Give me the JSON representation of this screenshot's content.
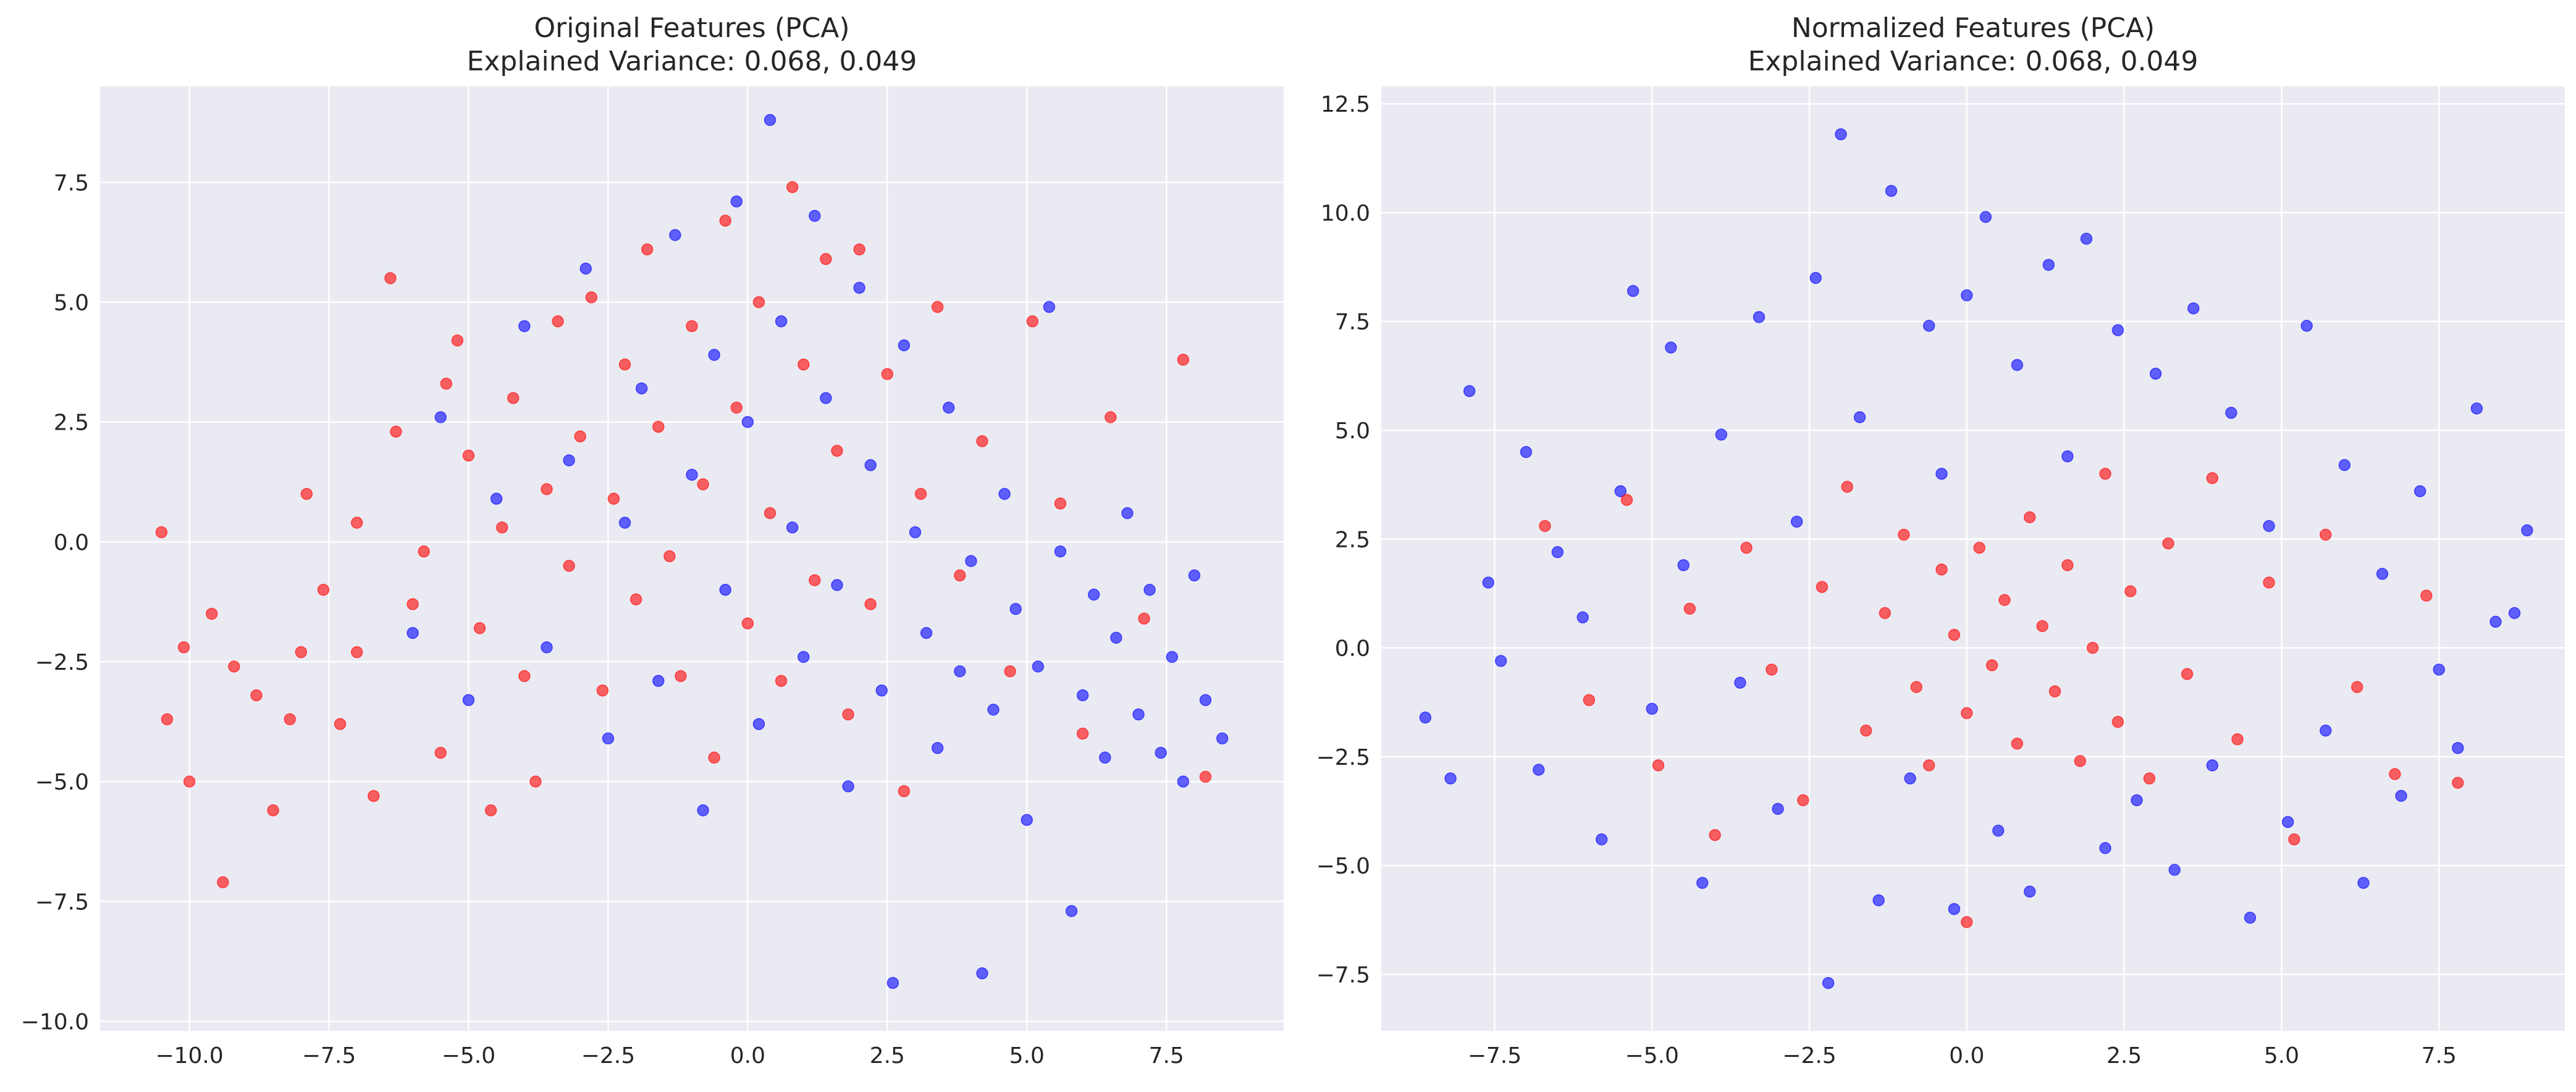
{
  "chart_data": [
    {
      "type": "scatter",
      "title": "Original Features (PCA)",
      "subtitle": "Explained Variance: 0.068, 0.049",
      "xlabel": "",
      "ylabel": "",
      "xlim": [
        -11.6,
        9.6
      ],
      "ylim": [
        -10.2,
        9.5
      ],
      "xticks": [
        -10.0,
        -7.5,
        -5.0,
        -2.5,
        0.0,
        2.5,
        5.0,
        7.5
      ],
      "xtick_labels": [
        "−10.0",
        "−7.5",
        "−5.0",
        "−2.5",
        "0.0",
        "2.5",
        "5.0",
        "7.5"
      ],
      "yticks": [
        -10.0,
        -7.5,
        -5.0,
        -2.5,
        0.0,
        2.5,
        5.0,
        7.5
      ],
      "ytick_labels": [
        "−10.0",
        "−7.5",
        "−5.0",
        "−2.5",
        "0.0",
        "2.5",
        "5.0",
        "7.5"
      ],
      "grid": true,
      "series": [
        {
          "color": "#ff0000",
          "points": [
            [
              -10.5,
              0.2
            ],
            [
              -10.4,
              -3.7
            ],
            [
              -10.1,
              -2.2
            ],
            [
              -10.0,
              -5.0
            ],
            [
              -9.6,
              -1.5
            ],
            [
              -9.4,
              -7.1
            ],
            [
              -9.2,
              -2.6
            ],
            [
              -8.8,
              -3.2
            ],
            [
              -8.5,
              -5.6
            ],
            [
              -8.2,
              -3.7
            ],
            [
              -8.0,
              -2.3
            ],
            [
              -7.9,
              1.0
            ],
            [
              -7.6,
              -1.0
            ],
            [
              -7.3,
              -3.8
            ],
            [
              -7.0,
              0.4
            ],
            [
              -7.0,
              -2.3
            ],
            [
              -6.7,
              -5.3
            ],
            [
              -6.4,
              5.5
            ],
            [
              -6.3,
              2.3
            ],
            [
              -6.0,
              -1.3
            ],
            [
              -5.8,
              -0.2
            ],
            [
              -5.5,
              -4.4
            ],
            [
              -5.4,
              3.3
            ],
            [
              -5.2,
              4.2
            ],
            [
              -5.0,
              1.8
            ],
            [
              -4.8,
              -1.8
            ],
            [
              -4.6,
              -5.6
            ],
            [
              -4.4,
              0.3
            ],
            [
              -4.2,
              3.0
            ],
            [
              -4.0,
              -2.8
            ],
            [
              -3.8,
              -5.0
            ],
            [
              -3.6,
              1.1
            ],
            [
              -3.4,
              4.6
            ],
            [
              -3.2,
              -0.5
            ],
            [
              -3.0,
              2.2
            ],
            [
              -2.8,
              5.1
            ],
            [
              -2.6,
              -3.1
            ],
            [
              -2.4,
              0.9
            ],
            [
              -2.2,
              3.7
            ],
            [
              -2.0,
              -1.2
            ],
            [
              -1.8,
              6.1
            ],
            [
              -1.6,
              2.4
            ],
            [
              -1.4,
              -0.3
            ],
            [
              -1.2,
              -2.8
            ],
            [
              -1.0,
              4.5
            ],
            [
              -0.8,
              1.2
            ],
            [
              -0.6,
              -4.5
            ],
            [
              -0.4,
              6.7
            ],
            [
              -0.2,
              2.8
            ],
            [
              0.0,
              -1.7
            ],
            [
              0.2,
              5.0
            ],
            [
              0.4,
              0.6
            ],
            [
              0.6,
              -2.9
            ],
            [
              0.8,
              7.4
            ],
            [
              1.0,
              3.7
            ],
            [
              1.2,
              -0.8
            ],
            [
              1.4,
              5.9
            ],
            [
              1.6,
              1.9
            ],
            [
              1.8,
              -3.6
            ],
            [
              2.0,
              6.1
            ],
            [
              2.2,
              -1.3
            ],
            [
              2.5,
              3.5
            ],
            [
              2.8,
              -5.2
            ],
            [
              3.1,
              1.0
            ],
            [
              3.4,
              4.9
            ],
            [
              3.8,
              -0.7
            ],
            [
              4.2,
              2.1
            ],
            [
              4.7,
              -2.7
            ],
            [
              5.1,
              4.6
            ],
            [
              5.6,
              0.8
            ],
            [
              6.0,
              -4.0
            ],
            [
              6.5,
              2.6
            ],
            [
              7.1,
              -1.6
            ],
            [
              7.8,
              3.8
            ],
            [
              8.2,
              -4.9
            ]
          ]
        },
        {
          "color": "#0000ff",
          "points": [
            [
              -6.0,
              -1.9
            ],
            [
              -5.5,
              2.6
            ],
            [
              -5.0,
              -3.3
            ],
            [
              -4.5,
              0.9
            ],
            [
              -4.0,
              4.5
            ],
            [
              -3.6,
              -2.2
            ],
            [
              -3.2,
              1.7
            ],
            [
              -2.9,
              5.7
            ],
            [
              -2.5,
              -4.1
            ],
            [
              -2.2,
              0.4
            ],
            [
              -1.9,
              3.2
            ],
            [
              -1.6,
              -2.9
            ],
            [
              -1.3,
              6.4
            ],
            [
              -1.0,
              1.4
            ],
            [
              -0.8,
              -5.6
            ],
            [
              -0.6,
              3.9
            ],
            [
              -0.4,
              -1.0
            ],
            [
              -0.2,
              7.1
            ],
            [
              0.0,
              2.5
            ],
            [
              0.2,
              -3.8
            ],
            [
              0.4,
              8.8
            ],
            [
              0.6,
              4.6
            ],
            [
              0.8,
              0.3
            ],
            [
              1.0,
              -2.4
            ],
            [
              1.2,
              6.8
            ],
            [
              1.4,
              3.0
            ],
            [
              1.6,
              -0.9
            ],
            [
              1.8,
              -5.1
            ],
            [
              2.0,
              5.3
            ],
            [
              2.2,
              1.6
            ],
            [
              2.4,
              -3.1
            ],
            [
              2.6,
              -9.2
            ],
            [
              2.8,
              4.1
            ],
            [
              3.0,
              0.2
            ],
            [
              3.2,
              -1.9
            ],
            [
              3.4,
              -4.3
            ],
            [
              3.6,
              2.8
            ],
            [
              3.8,
              -2.7
            ],
            [
              4.0,
              -0.4
            ],
            [
              4.2,
              -9.0
            ],
            [
              4.4,
              -3.5
            ],
            [
              4.6,
              1.0
            ],
            [
              4.8,
              -1.4
            ],
            [
              5.0,
              -5.8
            ],
            [
              5.2,
              -2.6
            ],
            [
              5.4,
              4.9
            ],
            [
              5.6,
              -0.2
            ],
            [
              5.8,
              -7.7
            ],
            [
              6.0,
              -3.2
            ],
            [
              6.2,
              -1.1
            ],
            [
              6.4,
              -4.5
            ],
            [
              6.6,
              -2.0
            ],
            [
              6.8,
              0.6
            ],
            [
              7.0,
              -3.6
            ],
            [
              7.2,
              -1.0
            ],
            [
              7.4,
              -4.4
            ],
            [
              7.6,
              -2.4
            ],
            [
              7.8,
              -5.0
            ],
            [
              8.0,
              -0.7
            ],
            [
              8.2,
              -3.3
            ],
            [
              8.5,
              -4.1
            ]
          ]
        }
      ]
    },
    {
      "type": "scatter",
      "title": "Normalized Features (PCA)",
      "subtitle": "Explained Variance: 0.068, 0.049",
      "xlabel": "",
      "ylabel": "",
      "xlim": [
        -9.3,
        9.5
      ],
      "ylim": [
        -8.8,
        12.9
      ],
      "xticks": [
        -7.5,
        -5.0,
        -2.5,
        0.0,
        2.5,
        5.0,
        7.5
      ],
      "xtick_labels": [
        "−7.5",
        "−5.0",
        "−2.5",
        "0.0",
        "2.5",
        "5.0",
        "7.5"
      ],
      "yticks": [
        -7.5,
        -5.0,
        -2.5,
        0.0,
        2.5,
        5.0,
        7.5,
        10.0,
        12.5
      ],
      "ytick_labels": [
        "−7.5",
        "−5.0",
        "−2.5",
        "0.0",
        "2.5",
        "5.0",
        "7.5",
        "10.0",
        "12.5"
      ],
      "grid": true,
      "series": [
        {
          "color": "#0000ff",
          "points": [
            [
              -8.6,
              -1.6
            ],
            [
              -8.2,
              -3.0
            ],
            [
              -7.9,
              5.9
            ],
            [
              -7.6,
              1.5
            ],
            [
              -7.4,
              -0.3
            ],
            [
              -7.0,
              4.5
            ],
            [
              -6.8,
              -2.8
            ],
            [
              -6.5,
              2.2
            ],
            [
              -6.1,
              0.7
            ],
            [
              -5.8,
              -4.4
            ],
            [
              -5.5,
              3.6
            ],
            [
              -5.3,
              8.2
            ],
            [
              -5.0,
              -1.4
            ],
            [
              -4.7,
              6.9
            ],
            [
              -4.5,
              1.9
            ],
            [
              -4.2,
              -5.4
            ],
            [
              -3.9,
              4.9
            ],
            [
              -3.6,
              -0.8
            ],
            [
              -3.3,
              7.6
            ],
            [
              -3.0,
              -3.7
            ],
            [
              -2.7,
              2.9
            ],
            [
              -2.4,
              8.5
            ],
            [
              -2.2,
              -7.7
            ],
            [
              -2.0,
              11.8
            ],
            [
              -1.7,
              5.3
            ],
            [
              -1.4,
              -5.8
            ],
            [
              -1.2,
              10.5
            ],
            [
              -0.9,
              -3.0
            ],
            [
              -0.6,
              7.4
            ],
            [
              -0.4,
              4.0
            ],
            [
              -0.2,
              -6.0
            ],
            [
              0.0,
              8.1
            ],
            [
              0.3,
              9.9
            ],
            [
              0.5,
              -4.2
            ],
            [
              0.8,
              6.5
            ],
            [
              1.0,
              -5.6
            ],
            [
              1.3,
              8.8
            ],
            [
              1.6,
              4.4
            ],
            [
              1.9,
              9.4
            ],
            [
              2.2,
              -4.6
            ],
            [
              2.4,
              7.3
            ],
            [
              2.7,
              -3.5
            ],
            [
              3.0,
              6.3
            ],
            [
              3.3,
              -5.1
            ],
            [
              3.6,
              7.8
            ],
            [
              3.9,
              -2.7
            ],
            [
              4.2,
              5.4
            ],
            [
              4.5,
              -6.2
            ],
            [
              4.8,
              2.8
            ],
            [
              5.1,
              -4.0
            ],
            [
              5.4,
              7.4
            ],
            [
              5.7,
              -1.9
            ],
            [
              6.0,
              4.2
            ],
            [
              6.3,
              -5.4
            ],
            [
              6.6,
              1.7
            ],
            [
              6.9,
              -3.4
            ],
            [
              7.2,
              3.6
            ],
            [
              7.5,
              -0.5
            ],
            [
              7.8,
              -2.3
            ],
            [
              8.1,
              5.5
            ],
            [
              8.4,
              0.6
            ],
            [
              8.7,
              0.8
            ],
            [
              8.9,
              2.7
            ]
          ]
        },
        {
          "color": "#ff0000",
          "points": [
            [
              -6.7,
              2.8
            ],
            [
              -6.0,
              -1.2
            ],
            [
              -5.4,
              3.4
            ],
            [
              -4.9,
              -2.7
            ],
            [
              -4.4,
              0.9
            ],
            [
              -4.0,
              -4.3
            ],
            [
              -3.5,
              2.3
            ],
            [
              -3.1,
              -0.5
            ],
            [
              -2.6,
              -3.5
            ],
            [
              -2.3,
              1.4
            ],
            [
              -1.9,
              3.7
            ],
            [
              -1.6,
              -1.9
            ],
            [
              -1.3,
              0.8
            ],
            [
              -1.0,
              2.6
            ],
            [
              -0.8,
              -0.9
            ],
            [
              -0.6,
              -2.7
            ],
            [
              -0.4,
              1.8
            ],
            [
              -0.2,
              0.3
            ],
            [
              0.0,
              -1.5
            ],
            [
              0.0,
              -6.3
            ],
            [
              0.2,
              2.3
            ],
            [
              0.4,
              -0.4
            ],
            [
              0.6,
              1.1
            ],
            [
              0.8,
              -2.2
            ],
            [
              1.0,
              3.0
            ],
            [
              1.2,
              0.5
            ],
            [
              1.4,
              -1.0
            ],
            [
              1.6,
              1.9
            ],
            [
              1.8,
              -2.6
            ],
            [
              2.0,
              0.0
            ],
            [
              2.2,
              4.0
            ],
            [
              2.4,
              -1.7
            ],
            [
              2.6,
              1.3
            ],
            [
              2.9,
              -3.0
            ],
            [
              3.2,
              2.4
            ],
            [
              3.5,
              -0.6
            ],
            [
              3.9,
              3.9
            ],
            [
              4.3,
              -2.1
            ],
            [
              4.8,
              1.5
            ],
            [
              5.2,
              -4.4
            ],
            [
              5.7,
              2.6
            ],
            [
              6.2,
              -0.9
            ],
            [
              6.8,
              -2.9
            ],
            [
              7.3,
              1.2
            ],
            [
              7.8,
              -3.1
            ]
          ]
        }
      ]
    }
  ]
}
